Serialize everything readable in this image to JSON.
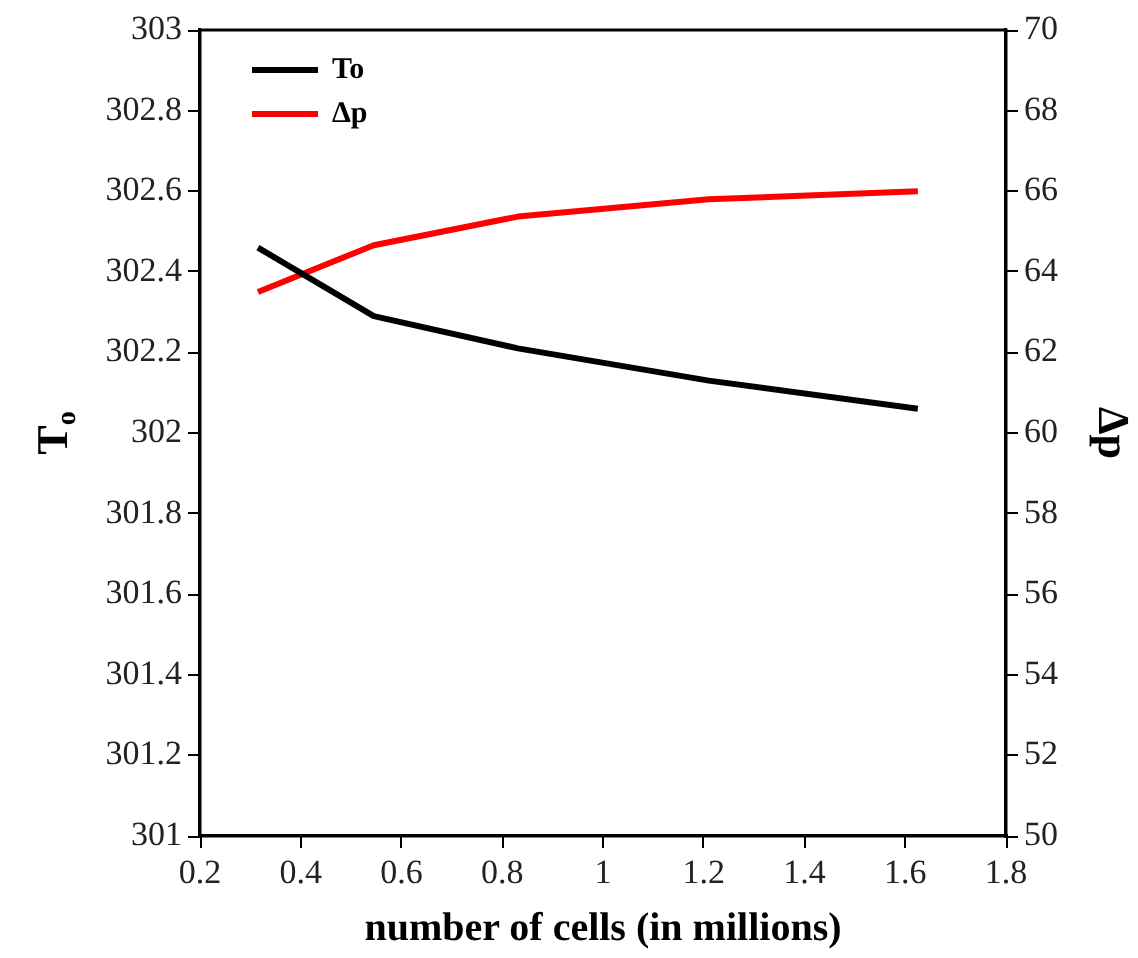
{
  "chart_data": {
    "type": "line",
    "xlabel": "number of cells (in millions)",
    "ylabel": "T$_{o}$",
    "y2label": "Δp",
    "x": [
      0.315,
      0.545,
      0.831,
      1.21,
      1.625
    ],
    "series": [
      {
        "name": "To",
        "color": "#000000",
        "values": [
          302.46,
          302.29,
          302.21,
          302.13,
          302.06
        ]
      },
      {
        "name": "Δp",
        "color": "#ff0000",
        "axis": "y2",
        "values": [
          63.5,
          64.66,
          65.37,
          65.8,
          66.0
        ]
      }
    ],
    "xlim": [
      0.2,
      1.8
    ],
    "xticks": [
      0.2,
      0.4,
      0.6,
      0.8,
      1,
      1.2,
      1.4,
      1.6,
      1.8
    ],
    "ylim": [
      301,
      303
    ],
    "yticks": [
      301,
      301.2,
      301.4,
      301.6,
      301.8,
      302,
      302.2,
      302.4,
      302.6,
      302.8,
      303
    ],
    "y2lim": [
      50,
      70
    ],
    "y2ticks": [
      50,
      52,
      54,
      56,
      58,
      60,
      62,
      64,
      66,
      68,
      70
    ],
    "grid": false,
    "legend": "top left",
    "marker": "none",
    "line_style": "solid"
  }
}
